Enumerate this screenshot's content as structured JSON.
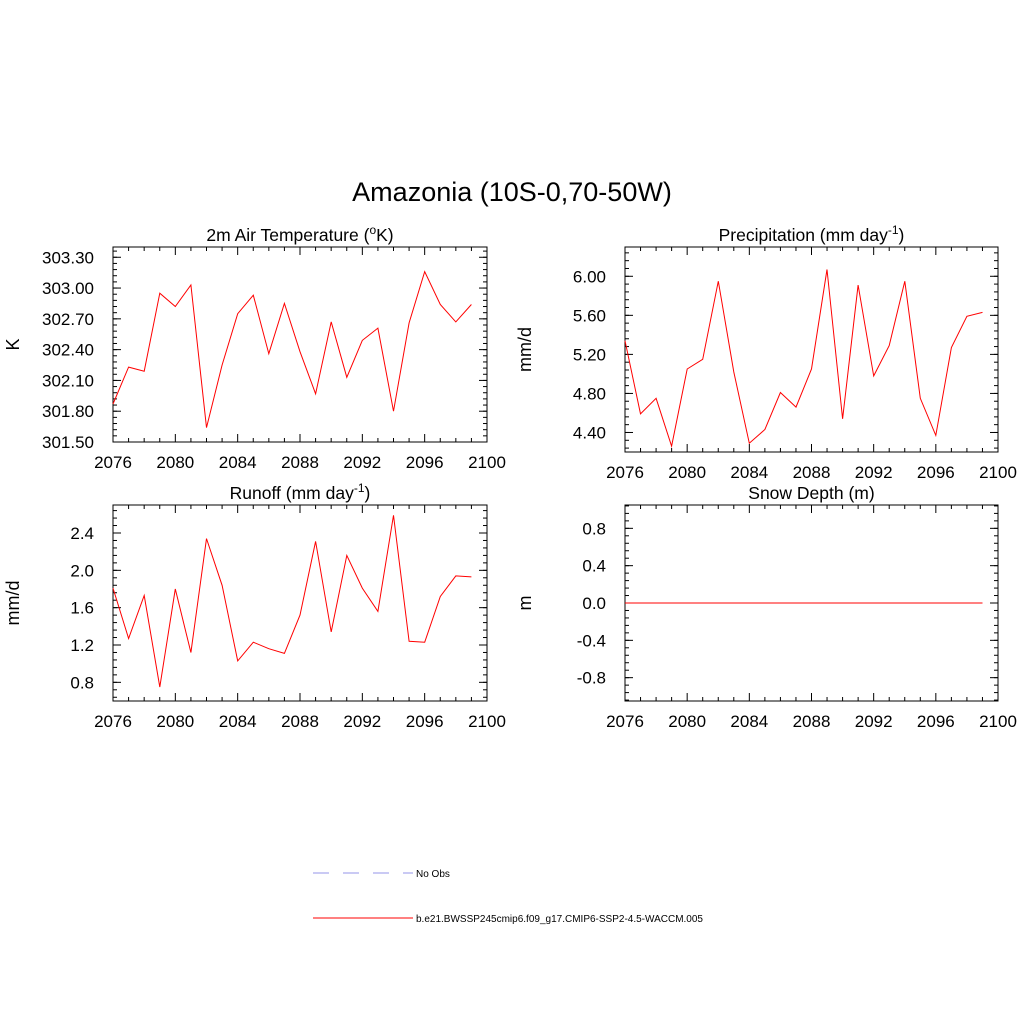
{
  "figure": {
    "title": "Amazonia (10S-0,70-50W)"
  },
  "legend": {
    "entries": [
      {
        "label": "No Obs",
        "color": "#aaaaee",
        "style": "dashed"
      },
      {
        "label": "b.e21.BWSSP245cmip6.f09_g17.CMIP6-SSP2-4.5-WACCM.005",
        "color": "#ff0000",
        "style": "solid"
      }
    ]
  },
  "colors": {
    "series": "#ff0000",
    "obs": "#aaaaee"
  },
  "chart_data": [
    {
      "id": "temp",
      "type": "line",
      "title": "2m Air Temperature (",
      "title_sup": "o",
      "title_after": "K)",
      "xlabel": "",
      "ylabel": "K",
      "xlim": [
        2076,
        2100
      ],
      "ylim": [
        301.5,
        303.4
      ],
      "xticks": [
        2076,
        2080,
        2084,
        2088,
        2092,
        2096,
        2100
      ],
      "xtick_labels": [
        "2076",
        "2080",
        "2084",
        "2088",
        "2092",
        "2096",
        "2100"
      ],
      "yticks": [
        301.5,
        301.8,
        302.1,
        302.4,
        302.7,
        303.0,
        303.3
      ],
      "ytick_labels": [
        "301.50",
        "301.80",
        "302.10",
        "302.40",
        "302.70",
        "303.00",
        "303.30"
      ],
      "yminor_step": 0.06,
      "x": [
        2076,
        2077,
        2078,
        2079,
        2080,
        2081,
        2082,
        2083,
        2084,
        2085,
        2086,
        2087,
        2088,
        2089,
        2090,
        2091,
        2092,
        2093,
        2094,
        2095,
        2096,
        2097,
        2098,
        2099
      ],
      "y": [
        301.87,
        302.23,
        302.19,
        302.95,
        302.82,
        303.03,
        301.64,
        302.25,
        302.75,
        302.93,
        302.36,
        302.85,
        302.38,
        301.97,
        302.67,
        302.13,
        302.49,
        302.61,
        301.8,
        302.66,
        303.16,
        302.84,
        302.67,
        302.84
      ],
      "series_name": "b.e21.BWSSP245cmip6.f09_g17.CMIP6-SSP2-4.5-WACCM.005"
    },
    {
      "id": "precip",
      "type": "line",
      "title": "Precipitation (mm day",
      "title_sup": "-1",
      "title_after": ")",
      "xlabel": "",
      "ylabel": "mm/d",
      "xlim": [
        2076,
        2100
      ],
      "ylim": [
        4.2,
        6.3
      ],
      "xticks": [
        2076,
        2080,
        2084,
        2088,
        2092,
        2096,
        2100
      ],
      "xtick_labels": [
        "2076",
        "2080",
        "2084",
        "2088",
        "2092",
        "2096",
        "2100"
      ],
      "yticks": [
        4.4,
        4.8,
        5.2,
        5.6,
        6.0
      ],
      "ytick_labels": [
        "4.40",
        "4.80",
        "5.20",
        "5.60",
        "6.00"
      ],
      "yminor_step": 0.08,
      "x": [
        2076,
        2077,
        2078,
        2079,
        2080,
        2081,
        2082,
        2083,
        2084,
        2085,
        2086,
        2087,
        2088,
        2089,
        2090,
        2091,
        2092,
        2093,
        2094,
        2095,
        2096,
        2097,
        2098,
        2099
      ],
      "y": [
        5.34,
        4.59,
        4.75,
        4.26,
        5.05,
        5.15,
        5.95,
        5.02,
        4.29,
        4.43,
        4.81,
        4.66,
        5.05,
        6.07,
        4.54,
        5.91,
        4.98,
        5.29,
        5.95,
        4.75,
        4.37,
        5.27,
        5.59,
        5.63
      ],
      "series_name": "b.e21.BWSSP245cmip6.f09_g17.CMIP6-SSP2-4.5-WACCM.005"
    },
    {
      "id": "runoff",
      "type": "line",
      "title": "Runoff (mm day",
      "title_sup": "-1",
      "title_after": ")",
      "xlabel": "",
      "ylabel": "mm/d",
      "xlim": [
        2076,
        2100
      ],
      "ylim": [
        0.6,
        2.7
      ],
      "xticks": [
        2076,
        2080,
        2084,
        2088,
        2092,
        2096,
        2100
      ],
      "xtick_labels": [
        "2076",
        "2080",
        "2084",
        "2088",
        "2092",
        "2096",
        "2100"
      ],
      "yticks": [
        0.8,
        1.2,
        1.6,
        2.0,
        2.4
      ],
      "ytick_labels": [
        "0.8",
        "1.2",
        "1.6",
        "2.0",
        "2.4"
      ],
      "yminor_step": 0.08,
      "x": [
        2076,
        2077,
        2078,
        2079,
        2080,
        2081,
        2082,
        2083,
        2084,
        2085,
        2086,
        2087,
        2088,
        2089,
        2090,
        2091,
        2092,
        2093,
        2094,
        2095,
        2096,
        2097,
        2098,
        2099
      ],
      "y": [
        1.81,
        1.27,
        1.73,
        0.75,
        1.8,
        1.12,
        2.34,
        1.84,
        1.03,
        1.23,
        1.16,
        1.11,
        1.52,
        2.31,
        1.34,
        2.16,
        1.81,
        1.56,
        2.59,
        1.24,
        1.23,
        1.72,
        1.94,
        1.93
      ],
      "series_name": "b.e21.BWSSP245cmip6.f09_g17.CMIP6-SSP2-4.5-WACCM.005"
    },
    {
      "id": "snow",
      "type": "line",
      "title": "Snow Depth (m)",
      "title_sup": "",
      "title_after": "",
      "xlabel": "",
      "ylabel": "m",
      "xlim": [
        2076,
        2100
      ],
      "ylim": [
        -1.05,
        1.05
      ],
      "xticks": [
        2076,
        2080,
        2084,
        2088,
        2092,
        2096,
        2100
      ],
      "xtick_labels": [
        "2076",
        "2080",
        "2084",
        "2088",
        "2092",
        "2096",
        "2100"
      ],
      "yticks": [
        -0.8,
        -0.4,
        0.0,
        0.4,
        0.8
      ],
      "ytick_labels": [
        "-0.8",
        "-0.4",
        "0.0",
        "0.4",
        "0.8"
      ],
      "yminor_step": 0.08,
      "x": [
        2076,
        2077,
        2078,
        2079,
        2080,
        2081,
        2082,
        2083,
        2084,
        2085,
        2086,
        2087,
        2088,
        2089,
        2090,
        2091,
        2092,
        2093,
        2094,
        2095,
        2096,
        2097,
        2098,
        2099
      ],
      "y": [
        0,
        0,
        0,
        0,
        0,
        0,
        0,
        0,
        0,
        0,
        0,
        0,
        0,
        0,
        0,
        0,
        0,
        0,
        0,
        0,
        0,
        0,
        0,
        0
      ],
      "series_name": "b.e21.BWSSP245cmip6.f09_g17.CMIP6-SSP2-4.5-WACCM.005"
    }
  ]
}
